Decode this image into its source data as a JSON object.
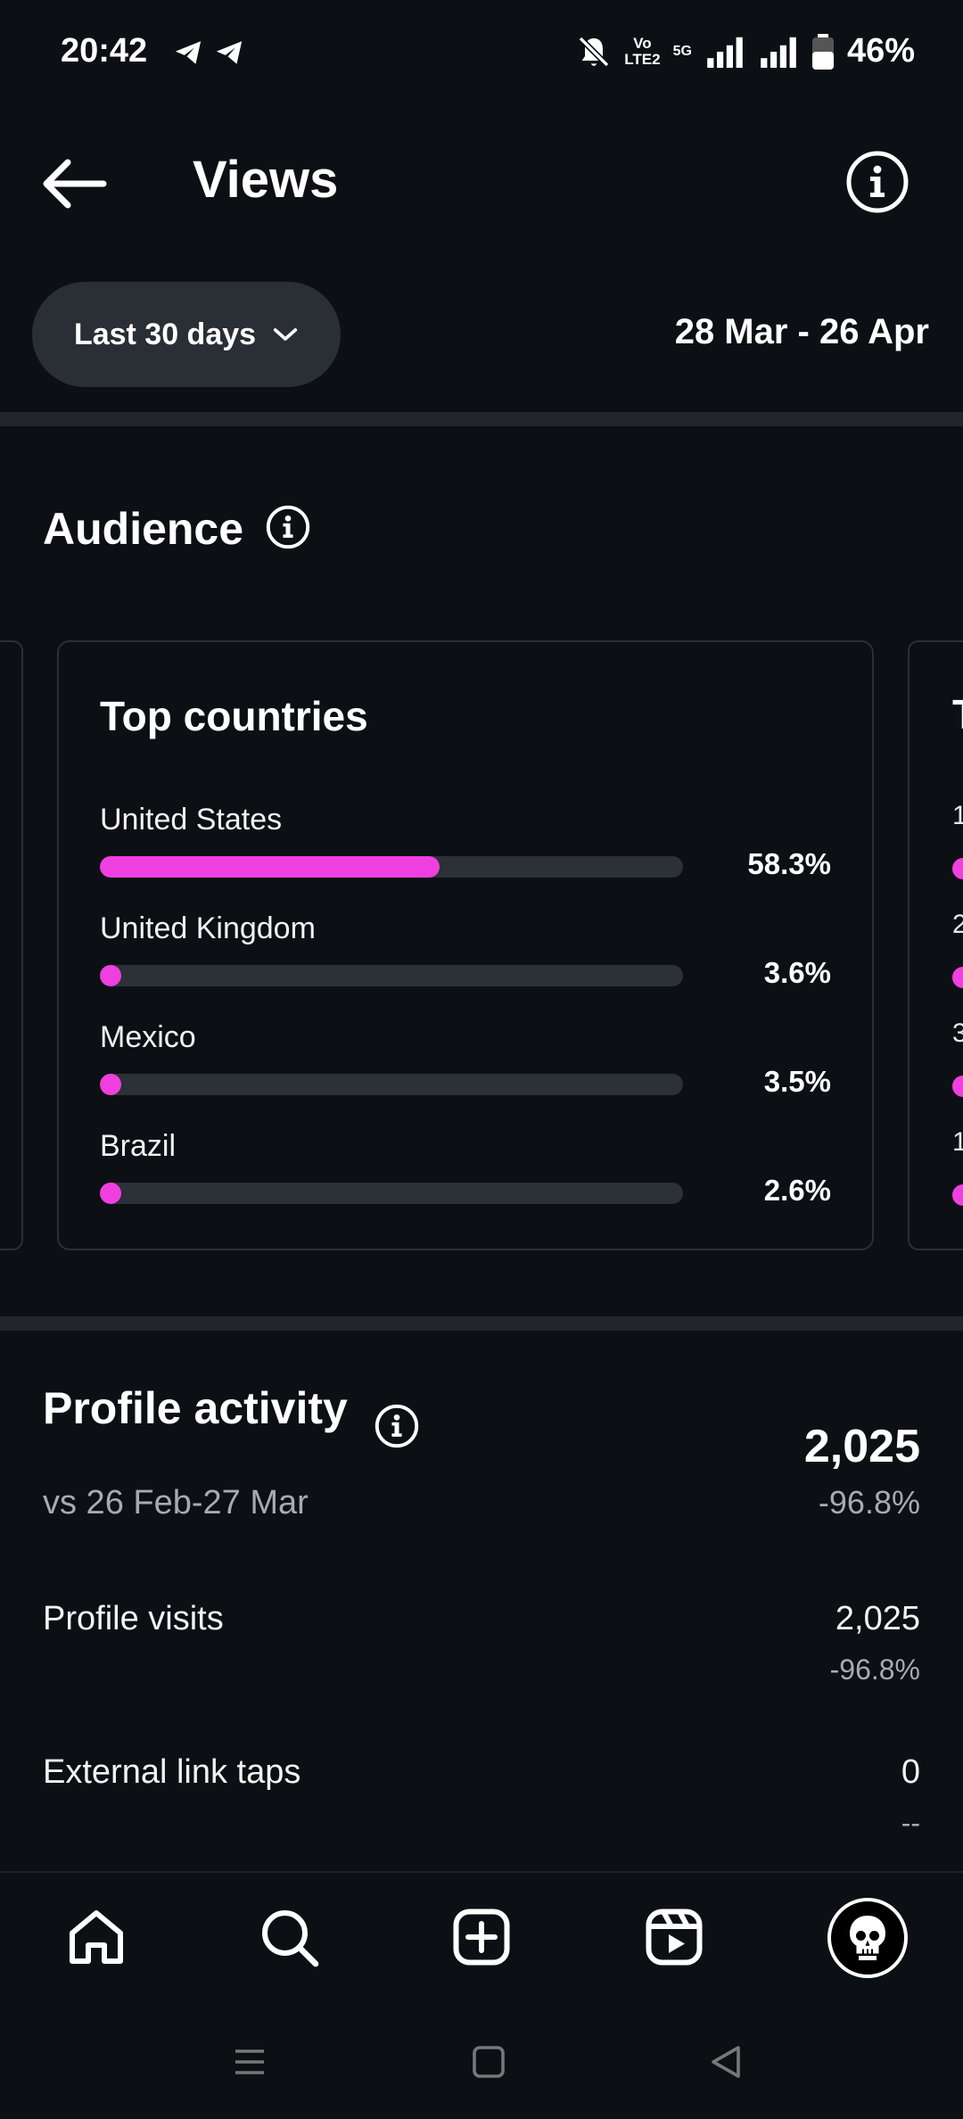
{
  "status_bar": {
    "time": "20:42",
    "volte_line1": "Vo",
    "volte_line2": "LTE2",
    "network": "5G",
    "battery": "46%"
  },
  "header": {
    "title": "Views"
  },
  "filter": {
    "range_label": "Last 30 days",
    "date_range": "28 Mar - 26 Apr"
  },
  "audience": {
    "title": "Audience",
    "card_title": "Top countries",
    "countries": [
      {
        "name": "United States",
        "percent": 58.3,
        "label": "58.3%"
      },
      {
        "name": "United Kingdom",
        "percent": 3.6,
        "label": "3.6%"
      },
      {
        "name": "Mexico",
        "percent": 3.5,
        "label": "3.5%"
      },
      {
        "name": "Brazil",
        "percent": 2.6,
        "label": "2.6%"
      }
    ],
    "next_card_peek": {
      "title_initial": "T",
      "row_initials": [
        "1",
        "2",
        "3",
        "1"
      ]
    }
  },
  "profile_activity": {
    "title": "Profile activity",
    "compare": "vs 26 Feb-27 Mar",
    "total": "2,025",
    "total_change": "-96.8%",
    "metrics": [
      {
        "label": "Profile visits",
        "value": "2,025",
        "change": "-96.8%"
      },
      {
        "label": "External link taps",
        "value": "0",
        "change": "--"
      }
    ]
  },
  "colors": {
    "background": "#0c0f14",
    "accent_bar": "#f03fe0",
    "track": "#2c3037",
    "muted_text": "#a6abb3"
  },
  "icons": {
    "nav": [
      "home-icon",
      "search-icon",
      "create-icon",
      "reels-icon",
      "profile-avatar"
    ],
    "system": [
      "recents-icon",
      "home-square-icon",
      "back-triangle-icon"
    ]
  }
}
